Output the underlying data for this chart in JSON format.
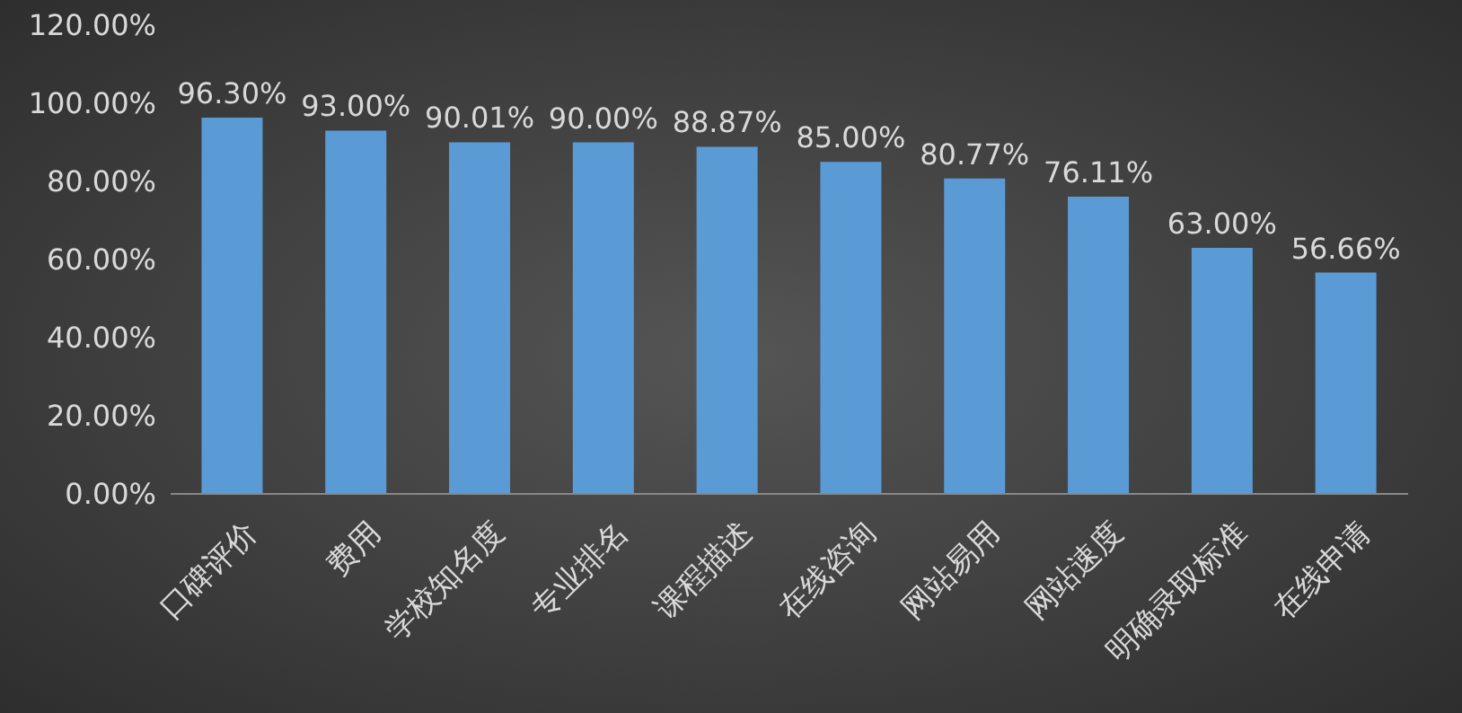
{
  "chart_data": {
    "type": "bar",
    "categories": [
      "口碑评价",
      "费用",
      "学校知名度",
      "专业排名",
      "课程描述",
      "在线咨询",
      "网站易用",
      "网站速度",
      "明确录取标准",
      "在线申请"
    ],
    "values": [
      96.3,
      93.0,
      90.01,
      90.0,
      88.87,
      85.0,
      80.77,
      76.11,
      63.0,
      56.66
    ],
    "value_labels": [
      "96.30%",
      "93.00%",
      "90.01%",
      "90.00%",
      "88.87%",
      "85.00%",
      "80.77%",
      "76.11%",
      "63.00%",
      "56.66%"
    ],
    "color": "#5b9bd5",
    "ylim": [
      0,
      120
    ],
    "yticks": [
      {
        "value": 0,
        "label": "0.00%"
      },
      {
        "value": 20,
        "label": "20.00%"
      },
      {
        "value": 40,
        "label": "40.00%"
      },
      {
        "value": 60,
        "label": "60.00%"
      },
      {
        "value": 80,
        "label": "80.00%"
      },
      {
        "value": 100,
        "label": "100.00%"
      },
      {
        "value": 120,
        "label": "120.00%"
      }
    ],
    "grid": false,
    "legend": false
  }
}
